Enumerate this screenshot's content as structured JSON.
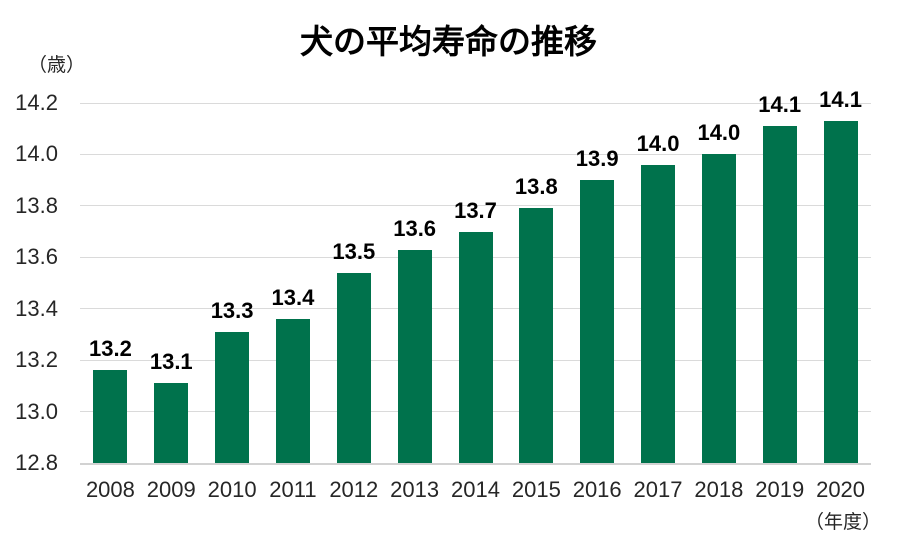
{
  "chart_data": {
    "type": "bar",
    "title": "犬の平均寿命の推移",
    "y_unit_label": "（歳）",
    "x_unit_label": "（年度）",
    "categories": [
      "2008",
      "2009",
      "2010",
      "2011",
      "2012",
      "2013",
      "2014",
      "2015",
      "2016",
      "2017",
      "2018",
      "2019",
      "2020"
    ],
    "values": [
      13.16,
      13.11,
      13.31,
      13.36,
      13.54,
      13.63,
      13.7,
      13.79,
      13.9,
      13.96,
      14.0,
      14.11,
      14.13
    ],
    "bar_labels": [
      "13.2",
      "13.1",
      "13.3",
      "13.4",
      "13.5",
      "13.6",
      "13.7",
      "13.8",
      "13.9",
      "14.0",
      "14.0",
      "14.1",
      "14.1"
    ],
    "ylim": [
      12.8,
      14.2
    ],
    "y_tick_step": 0.2,
    "y_tick_labels": [
      "12.8",
      "13.0",
      "13.2",
      "13.4",
      "13.6",
      "13.8",
      "14.0",
      "14.2"
    ],
    "xlabel": "",
    "ylabel": "",
    "grid": true,
    "legend_position": "none",
    "colors": {
      "bar": "#00724C",
      "gridline": "#DADADA",
      "axis_line": "#D2D2D2",
      "tick_label": "#262626",
      "data_label": "#000000",
      "title": "#000000",
      "background": "#FFFFFF"
    }
  }
}
